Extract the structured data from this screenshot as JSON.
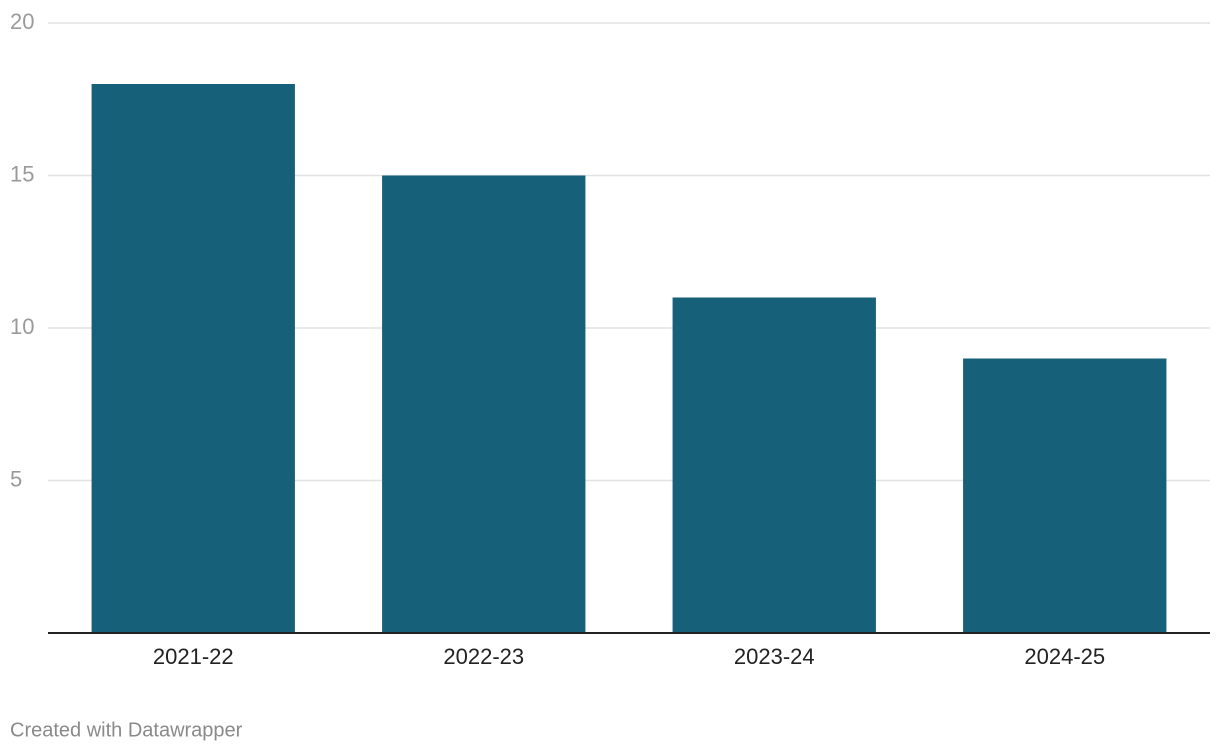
{
  "chart_data": {
    "type": "bar",
    "categories": [
      "2021-22",
      "2022-23",
      "2023-24",
      "2024-25"
    ],
    "values": [
      18,
      15,
      11,
      9
    ],
    "color": "#17607a",
    "ylim": [
      0,
      20
    ],
    "yticks": [
      5,
      10,
      15,
      20
    ],
    "grid": true,
    "credit": "Created with Datawrapper"
  }
}
